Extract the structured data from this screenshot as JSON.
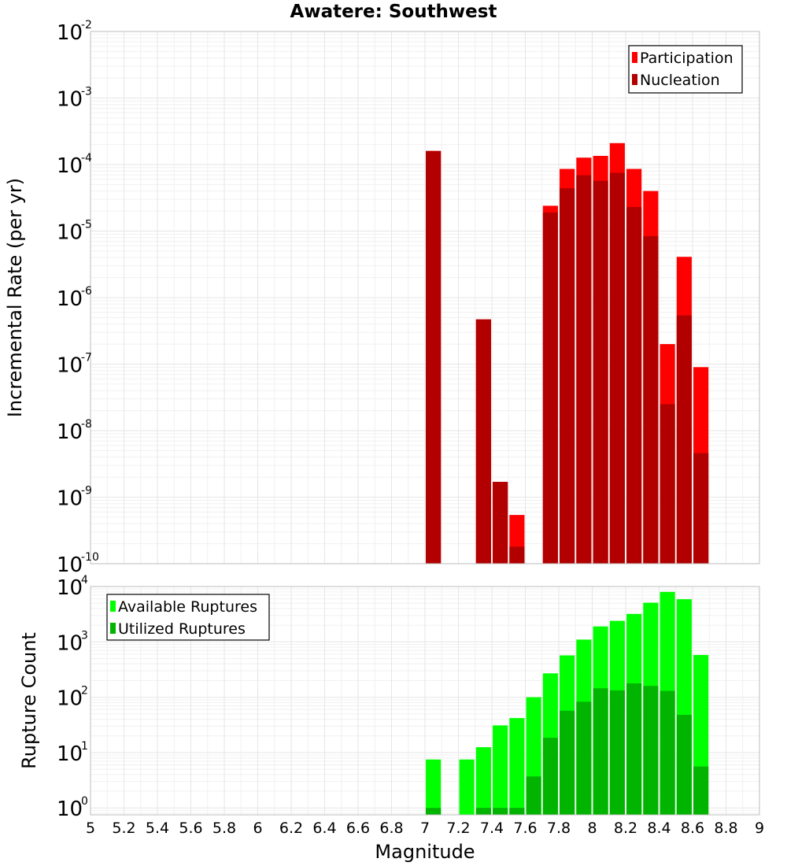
{
  "title": "Awatere: Southwest",
  "x_axis_label": "Magnitude",
  "chart_data": [
    {
      "type": "bar",
      "ylabel": "Incremental Rate (per yr)",
      "y_scale": "log",
      "ylim": [
        1e-10,
        0.01
      ],
      "xlim": [
        5,
        9
      ],
      "grid": true,
      "legend_position": "top-right",
      "x": [
        7.05,
        7.35,
        7.45,
        7.55,
        7.75,
        7.85,
        7.95,
        8.05,
        8.15,
        8.25,
        8.35,
        8.45,
        8.55,
        8.65
      ],
      "series": [
        {
          "name": "Participation",
          "color": "#ff0000",
          "values": [
            0.00016,
            4.7e-07,
            1.7e-09,
            5.4e-10,
            2.4e-05,
            8.6e-05,
            0.000127,
            0.000135,
            0.00021,
            8.6e-05,
            4e-05,
            2e-07,
            4.1e-06,
            9e-08
          ]
        },
        {
          "name": "Nucleation",
          "color": "#b20000",
          "values": [
            0.00016,
            4.7e-07,
            1.7e-09,
            1.8e-10,
            1.9e-05,
            4.4e-05,
            6.9e-05,
            5.7e-05,
            7.5e-05,
            2.3e-05,
            8.4e-06,
            2.5e-08,
            5.4e-07,
            4.6e-09
          ]
        }
      ],
      "y_ticks": [
        {
          "base": "10",
          "exp": "-2"
        },
        {
          "base": "10",
          "exp": "-3"
        },
        {
          "base": "10",
          "exp": "-4"
        },
        {
          "base": "10",
          "exp": "-5"
        },
        {
          "base": "10",
          "exp": "-6"
        },
        {
          "base": "10",
          "exp": "-7"
        },
        {
          "base": "10",
          "exp": "-8"
        },
        {
          "base": "10",
          "exp": "-9"
        },
        {
          "base": "10",
          "exp": "-10"
        }
      ]
    },
    {
      "type": "bar",
      "ylabel": "Rupture Count",
      "y_scale": "log",
      "ylim": [
        0.75,
        10000
      ],
      "xlim": [
        5,
        9
      ],
      "grid": true,
      "legend_position": "top-left",
      "x": [
        7.05,
        7.25,
        7.35,
        7.45,
        7.55,
        7.65,
        7.75,
        7.85,
        7.95,
        8.05,
        8.15,
        8.25,
        8.35,
        8.45,
        8.55,
        8.65
      ],
      "series": [
        {
          "name": "Available Ruptures",
          "color": "#00ff00",
          "values": [
            7.5,
            7.5,
            12.5,
            31,
            42,
            100,
            270,
            570,
            1100,
            1900,
            2400,
            3200,
            5100,
            8000,
            5900,
            580
          ]
        },
        {
          "name": "Utilized Ruptures",
          "color": "#00b400",
          "values": [
            1,
            0,
            1,
            1,
            1,
            3.7,
            18.5,
            57,
            83,
            145,
            133,
            178,
            160,
            130,
            48,
            5.6
          ]
        }
      ],
      "y_ticks": [
        {
          "base": "10",
          "exp": "4"
        },
        {
          "base": "10",
          "exp": "3"
        },
        {
          "base": "10",
          "exp": "2"
        },
        {
          "base": "10",
          "exp": "1"
        },
        {
          "base": "10",
          "exp": "0"
        }
      ]
    }
  ],
  "x_ticks": [
    "5",
    "5.2",
    "5.4",
    "5.6",
    "5.8",
    "6",
    "6.2",
    "6.4",
    "6.6",
    "6.8",
    "7",
    "7.2",
    "7.4",
    "7.6",
    "7.8",
    "8",
    "8.2",
    "8.4",
    "8.6",
    "8.8",
    "9"
  ]
}
